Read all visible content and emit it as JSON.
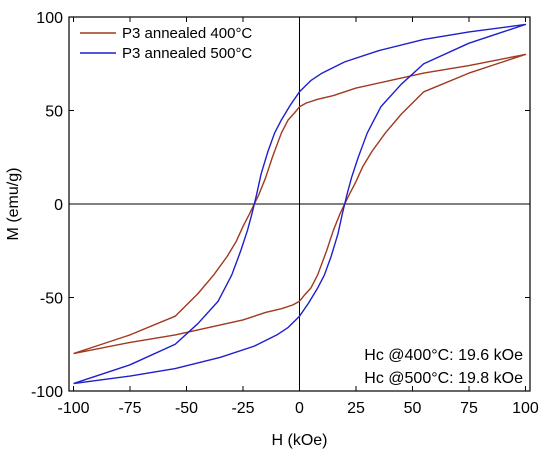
{
  "chart_data": {
    "type": "line",
    "title": "",
    "xlabel": "H (kOe)",
    "ylabel": "M (emu/g)",
    "xlim": [
      -102,
      102
    ],
    "ylim": [
      -100,
      100
    ],
    "xticks": [
      -100,
      -75,
      -50,
      -25,
      0,
      25,
      50,
      75,
      100
    ],
    "yticks": [
      -100,
      -50,
      0,
      50,
      100
    ],
    "grid": false,
    "zero_lines": true,
    "legend_position": "top-left",
    "series": [
      {
        "name": "P3 annealed 400°C",
        "color": "#a0391f",
        "x": [
          -100,
          -90,
          -75,
          -55,
          -45,
          -38,
          -32,
          -28,
          -25,
          -22,
          -20,
          -18,
          -15,
          -12,
          -8,
          -5,
          -2,
          0,
          3,
          8,
          15,
          25,
          40,
          55,
          75,
          100,
          100,
          90,
          75,
          55,
          45,
          38,
          32,
          28,
          25,
          22,
          20,
          18,
          15,
          12,
          8,
          5,
          2,
          0,
          -3,
          -8,
          -15,
          -25,
          -40,
          -55,
          -75,
          -100
        ],
        "y": [
          -80,
          -76,
          -70,
          -60,
          -48,
          -38,
          -28,
          -20,
          -12,
          -5,
          0,
          5,
          14,
          25,
          38,
          45,
          49,
          52,
          54,
          56,
          58,
          62,
          66,
          70,
          74,
          80,
          80,
          76,
          70,
          60,
          48,
          38,
          28,
          20,
          12,
          5,
          0,
          -5,
          -14,
          -25,
          -38,
          -45,
          -49,
          -52,
          -54,
          -56,
          -58,
          -62,
          -66,
          -70,
          -74,
          -80
        ]
      },
      {
        "name": "P3 annealed 500°C",
        "color": "#1f1fcc",
        "x": [
          -100,
          -90,
          -75,
          -55,
          -45,
          -36,
          -30,
          -26,
          -23,
          -21,
          -20,
          -19,
          -17,
          -14,
          -11,
          -8,
          -4,
          0,
          5,
          10,
          20,
          35,
          55,
          75,
          100,
          100,
          90,
          75,
          55,
          45,
          36,
          30,
          26,
          23,
          21,
          20,
          19,
          17,
          14,
          11,
          8,
          4,
          0,
          -5,
          -10,
          -20,
          -35,
          -55,
          -75,
          -100
        ],
        "y": [
          -96,
          -92,
          -86,
          -75,
          -64,
          -52,
          -38,
          -25,
          -14,
          -5,
          0,
          5,
          16,
          28,
          38,
          45,
          53,
          60,
          66,
          70,
          76,
          82,
          88,
          92,
          96,
          96,
          92,
          86,
          75,
          64,
          52,
          38,
          25,
          14,
          5,
          0,
          -5,
          -16,
          -28,
          -38,
          -45,
          -53,
          -60,
          -66,
          -70,
          -76,
          -82,
          -88,
          -92,
          -96
        ]
      }
    ],
    "annotations": [
      "Hc @400°C: 19.6 kOe",
      "Hc @500°C: 19.8 kOe"
    ]
  }
}
